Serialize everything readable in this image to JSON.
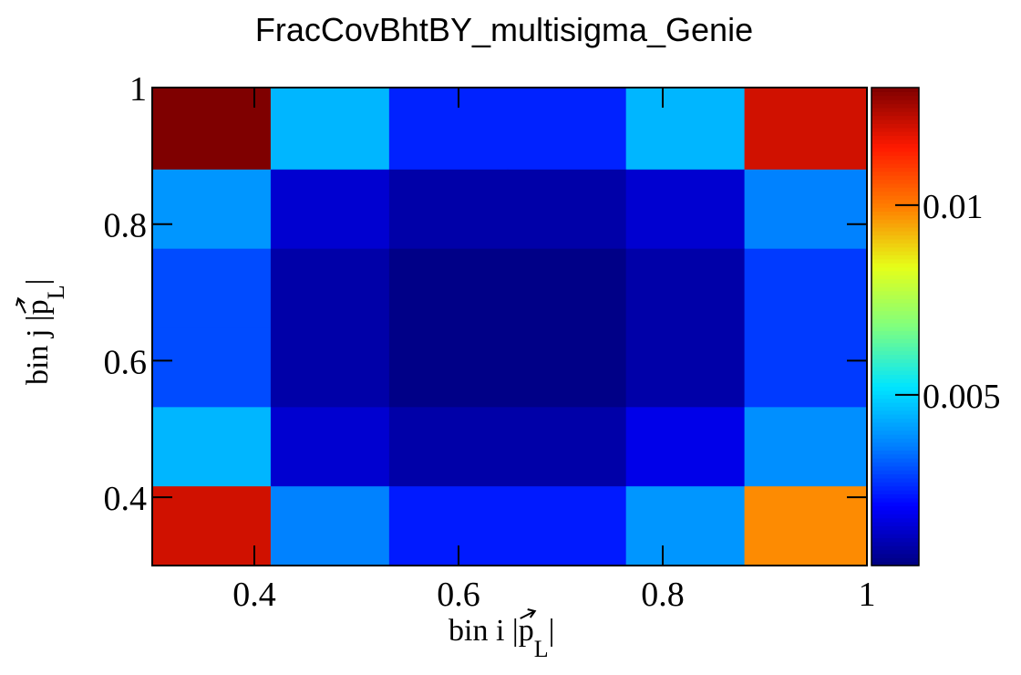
{
  "chart_data": {
    "type": "heatmap",
    "title": "FracCovBhtBY_multisigma_Genie",
    "xlabel": {
      "prefix": "bin i |",
      "symbol": "p",
      "subscript": "L",
      "suffix": "|"
    },
    "ylabel": {
      "prefix": "bin j |",
      "symbol": "p",
      "subscript": "L",
      "suffix": "|"
    },
    "x_bin_edges": [
      0.3,
      0.416,
      0.532,
      0.648,
      0.764,
      0.88,
      1.0
    ],
    "y_bin_edges": [
      0.3,
      0.416,
      0.532,
      0.648,
      0.764,
      0.88,
      1.0
    ],
    "xlim": [
      0.3,
      1.0
    ],
    "ylim": [
      0.3,
      1.0
    ],
    "x_ticks": [
      0.4,
      0.6,
      0.8,
      1.0
    ],
    "x_tick_labels": [
      "0.4",
      "0.6",
      "0.8",
      "1"
    ],
    "y_ticks": [
      0.4,
      0.6,
      0.8,
      1.0
    ],
    "y_tick_labels": [
      "0.4",
      "0.6",
      "0.8",
      "1"
    ],
    "z_range": [
      0.0005,
      0.0131
    ],
    "z_ticks": [
      0.005,
      0.01
    ],
    "z_tick_labels": [
      "0.005",
      "0.01"
    ],
    "colormap": [
      "#00007f",
      "#0000ff",
      "#007fff",
      "#00e5ff",
      "#7fff7f",
      "#e5ff19",
      "#ff7f00",
      "#ff1a00",
      "#7f0000"
    ],
    "values": [
      [
        0.0131,
        0.0045,
        0.0025,
        0.0025,
        0.0045,
        0.0121
      ],
      [
        0.004,
        0.0015,
        0.001,
        0.001,
        0.0015,
        0.0037
      ],
      [
        0.003,
        0.001,
        0.0006,
        0.0006,
        0.001,
        0.0028
      ],
      [
        0.003,
        0.001,
        0.0006,
        0.0006,
        0.001,
        0.0028
      ],
      [
        0.0045,
        0.0015,
        0.001,
        0.001,
        0.0018,
        0.0039
      ],
      [
        0.0121,
        0.0037,
        0.0024,
        0.0024,
        0.004,
        0.0098
      ]
    ],
    "grid": false
  }
}
